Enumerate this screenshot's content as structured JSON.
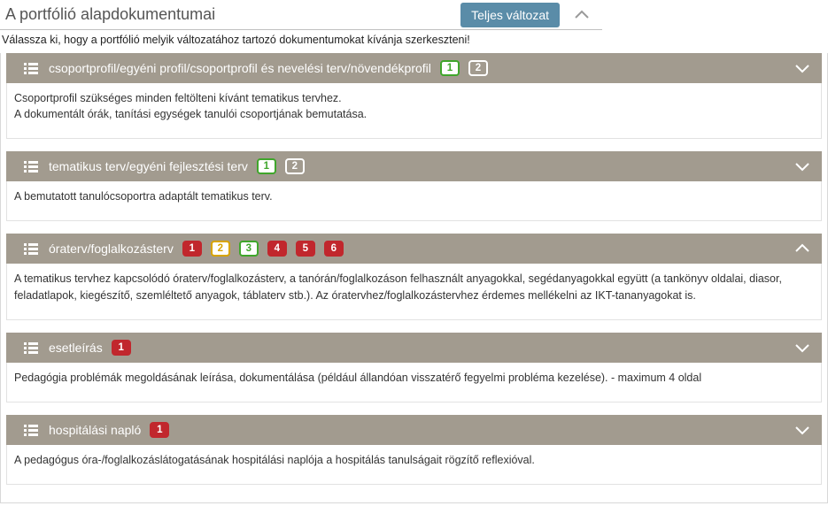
{
  "header": {
    "title": "A portfólió alapdokumentumai",
    "version_button": "Teljes változat"
  },
  "instruction": "Válassza ki, hogy a portfólió melyik változatához tartozó dokumentumokat kívánja szerkeszteni!",
  "badge_colors": {
    "green": {
      "bg": "#ffffff",
      "border": "#3fa62b",
      "text": "#3fa62b"
    },
    "white": {
      "bg": "#a29b8f",
      "border": "#ffffff",
      "text": "#ffffff"
    },
    "red": {
      "bg": "#c1272d",
      "border": "#c1272d",
      "text": "#ffffff"
    },
    "yellow": {
      "bg": "#ffffff",
      "border": "#d8a400",
      "text": "#d8a400"
    },
    "green2": {
      "bg": "#ffffff",
      "border": "#3fa62b",
      "text": "#3fa62b"
    }
  },
  "sections": [
    {
      "title": "csoportprofil/egyéni profil/csoportprofil és nevelési terv/növendékprofil",
      "badges": [
        {
          "label": "1",
          "style": "green"
        },
        {
          "label": "2",
          "style": "white"
        }
      ],
      "chevron": "down",
      "body": [
        "Csoportprofil szükséges minden feltölteni kívánt tematikus tervhez.",
        "A dokumentált órák, tanítási egységek tanulói csoportjának bemutatása."
      ]
    },
    {
      "title": "tematikus terv/egyéni fejlesztési terv",
      "badges": [
        {
          "label": "1",
          "style": "green"
        },
        {
          "label": "2",
          "style": "white"
        }
      ],
      "chevron": "down",
      "body": [
        "A bemutatott tanulócsoportra adaptált tematikus terv."
      ]
    },
    {
      "title": "óraterv/foglalkozásterv",
      "badges": [
        {
          "label": "1",
          "style": "red"
        },
        {
          "label": "2",
          "style": "yellow"
        },
        {
          "label": "3",
          "style": "green2"
        },
        {
          "label": "4",
          "style": "red"
        },
        {
          "label": "5",
          "style": "red"
        },
        {
          "label": "6",
          "style": "red"
        }
      ],
      "chevron": "up",
      "body": [
        "A tematikus tervhez kapcsolódó óraterv/foglalkozásterv, a tanórán/foglalkozáson felhasznált anyagokkal, segédanyagokkal együtt (a tankönyv oldalai, diasor, feladatlapok, kiegészítő, szemléltető anyagok, táblaterv stb.). Az óratervhez/foglalkozástervhez érdemes mellékelni az IKT-tananyagokat is."
      ]
    },
    {
      "title": "esetleírás",
      "badges": [
        {
          "label": "1",
          "style": "red"
        }
      ],
      "chevron": "down",
      "body": [
        "Pedagógia problémák megoldásának leírása, dokumentálása (például állandóan visszatérő fegyelmi probléma kezelése). - maximum 4 oldal"
      ]
    },
    {
      "title": "hospitálási napló",
      "badges": [
        {
          "label": "1",
          "style": "red"
        }
      ],
      "chevron": "down",
      "body": [
        "A pedagógus óra-/foglalkozáslátogatásának hospitálási naplója a hospitálás tanulságait rögzítő reflexióval."
      ]
    }
  ],
  "chevron_color_header": "#8a8a8a",
  "chevron_color_section": "#ffffff"
}
